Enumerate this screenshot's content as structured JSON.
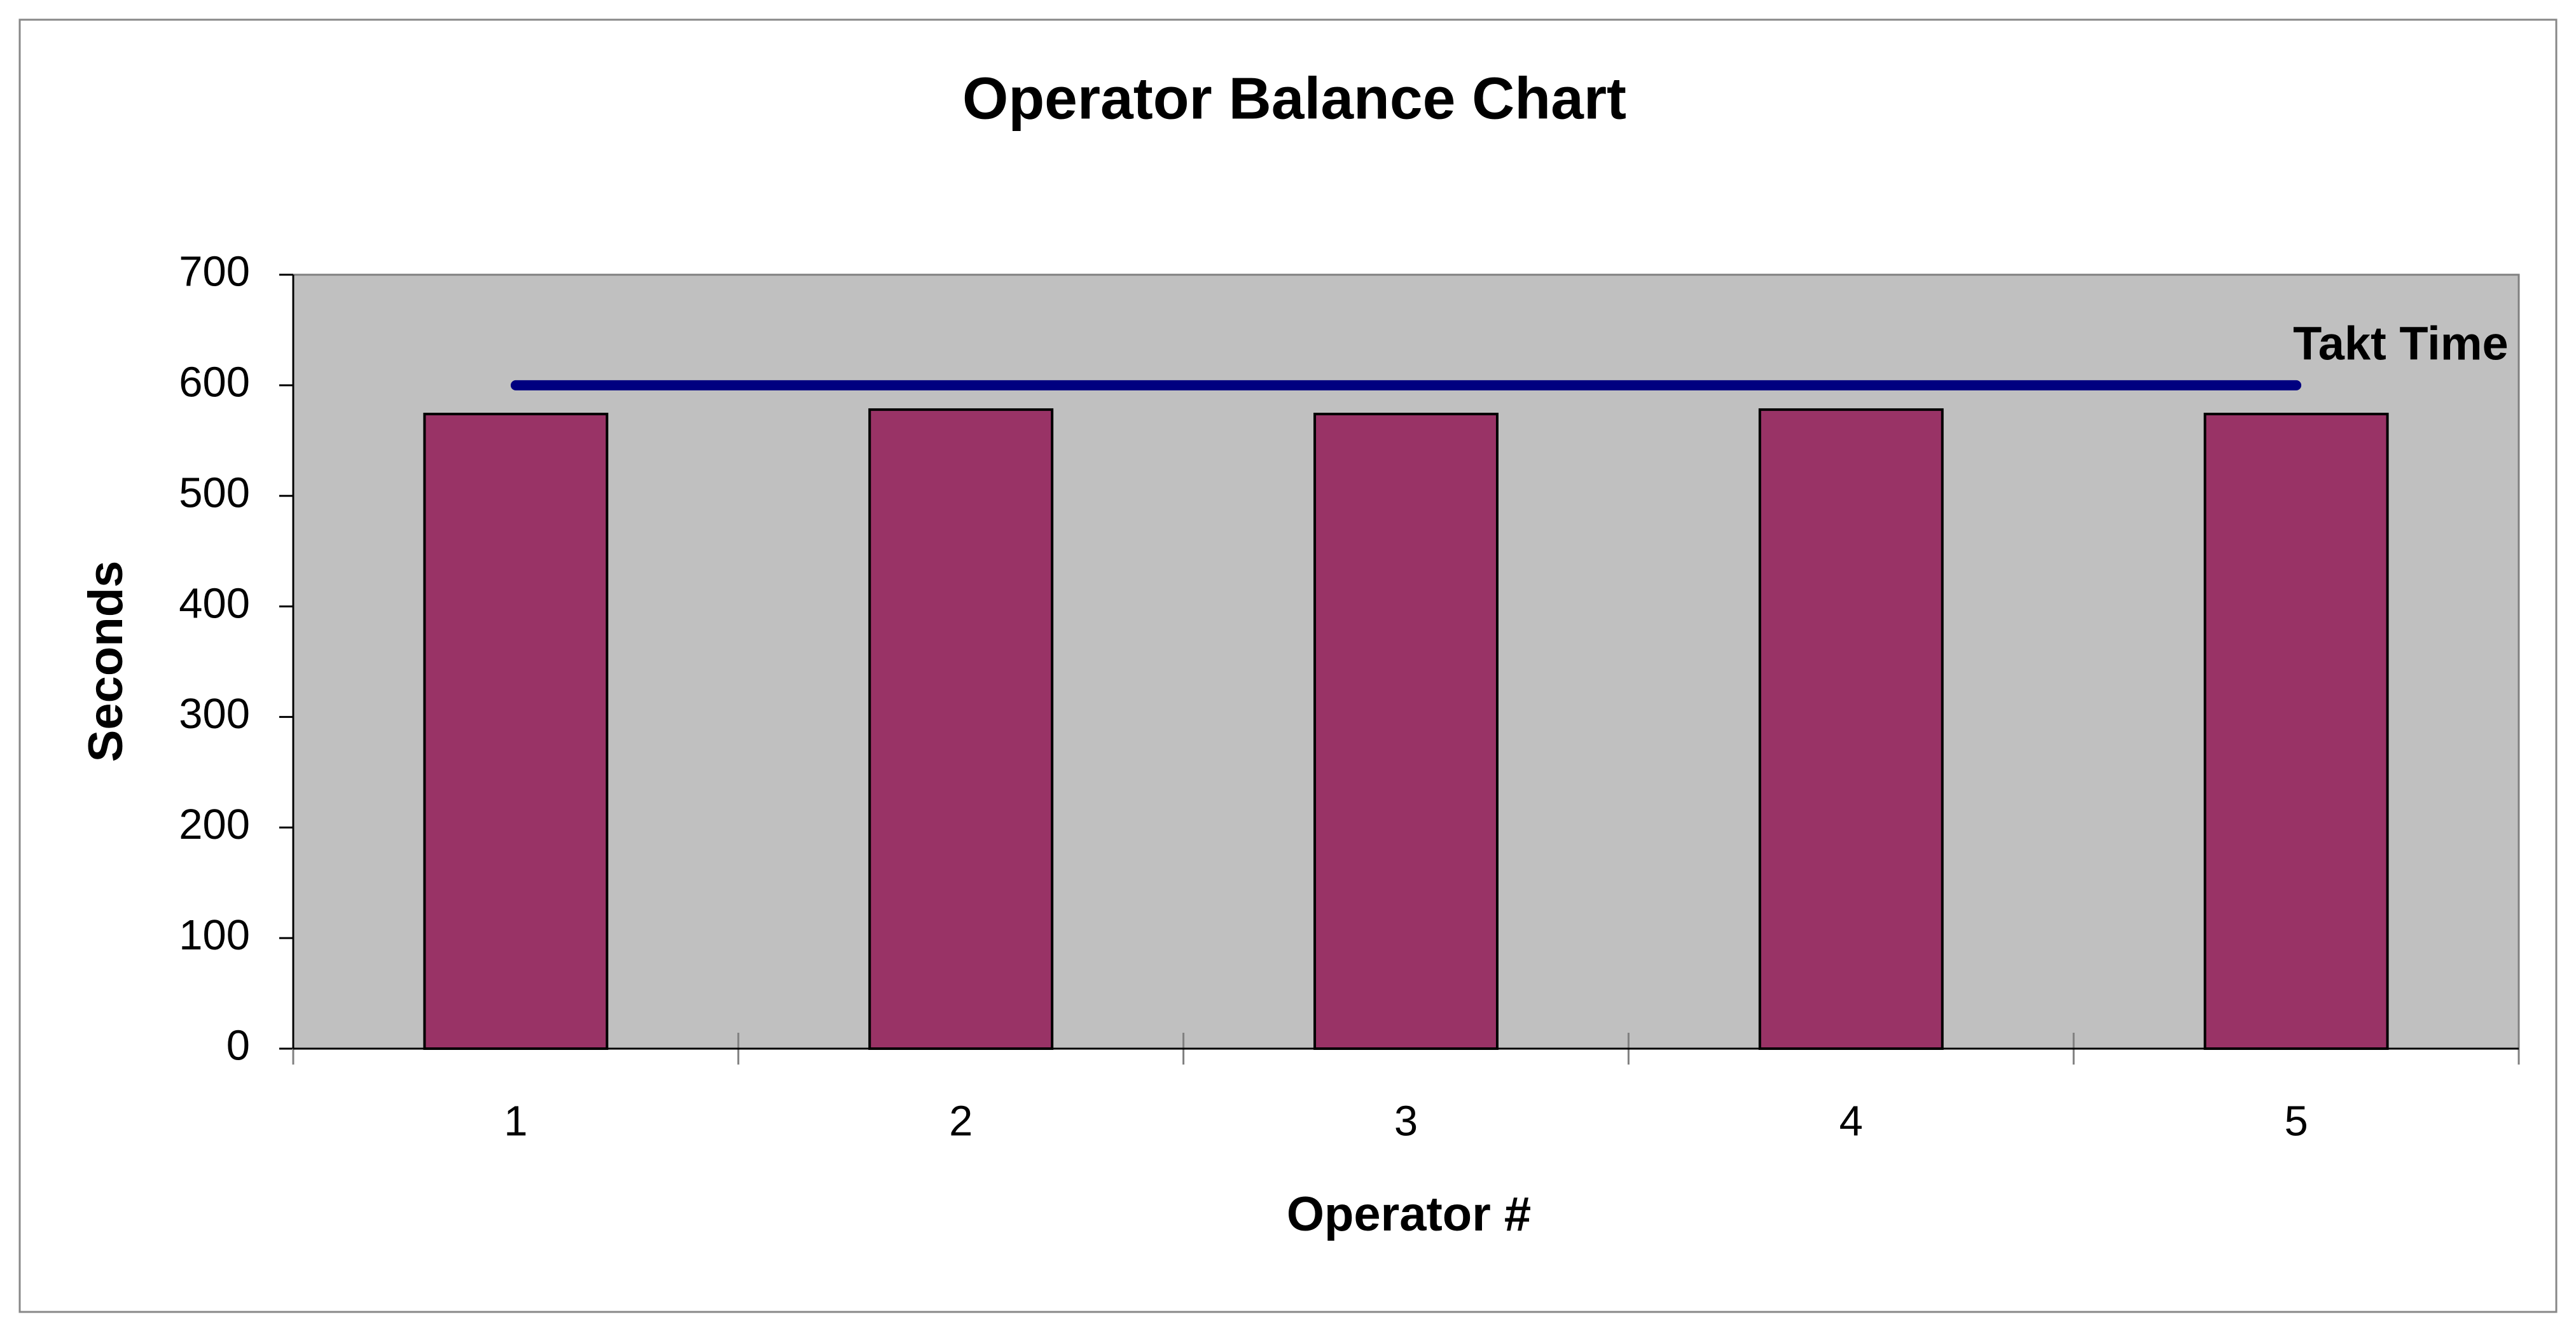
{
  "chart_data": {
    "type": "bar",
    "title": "Operator Balance Chart",
    "x_label": "Operator #",
    "y_label": "Seconds",
    "categories": [
      "1",
      "2",
      "3",
      "4",
      "5"
    ],
    "series": [
      {
        "type": "bar",
        "color": "#993366",
        "values": [
          574,
          578,
          574,
          578,
          574
        ]
      },
      {
        "type": "line",
        "name": "Takt Time",
        "color": "#000080",
        "values": [
          600,
          600,
          600,
          600,
          600
        ]
      }
    ],
    "ylim": [
      0,
      700
    ],
    "yticks": [
      0,
      100,
      200,
      300,
      400,
      500,
      600,
      700
    ],
    "plot_background": "#c0c0c0"
  }
}
